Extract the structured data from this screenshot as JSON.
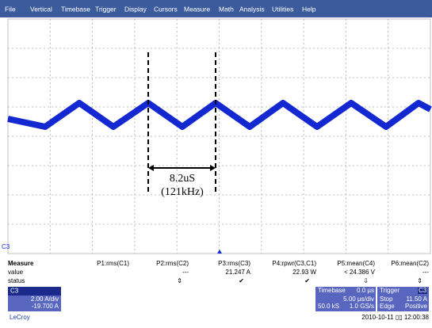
{
  "menu": [
    "File",
    "Vertical",
    "Timebase",
    "Trigger",
    "Display",
    "Cursors",
    "Measure",
    "Math",
    "Analysis",
    "Utilities",
    "Help"
  ],
  "annotation": {
    "period": "8.2uS",
    "frequency": "(121kHz)"
  },
  "channel_marker": "C3",
  "measure": {
    "header": [
      "Measure",
      "P1:rms(C1)",
      "P2:rms(C2)",
      "P3:rms(C3)",
      "P4:rpwr(C3,C1)",
      "P5:mean(C4)",
      "P6:mean(C2)"
    ],
    "value": {
      "label": "value",
      "cells": {
        "2": "---",
        "3": "21.247 A",
        "4": "22.93 W",
        "5": "< 24.386 V",
        "6": "---"
      }
    },
    "status": {
      "label": "status",
      "cells": {
        "2": "⇕",
        "3": "✔",
        "4": "✔",
        "5": "⇩",
        "6": "⇕"
      }
    }
  },
  "channel": {
    "name": "C3",
    "scale": "2.00 A/div",
    "offset": "-19.700 A"
  },
  "timebase": {
    "title": "Timebase",
    "delay": "0.0 µs",
    "scale": "5.00 µs/div",
    "samples": "50.0 kS",
    "rate": "1.0 GS/s"
  },
  "trigger": {
    "title": "Trigger",
    "source": "C3",
    "mode": "Stop",
    "level": "11.50 A",
    "type": "Edge",
    "slope": "Positive"
  },
  "brand": "LeCroy",
  "timestamp": "2010-10-11 ▯▯ 12:00:38"
}
